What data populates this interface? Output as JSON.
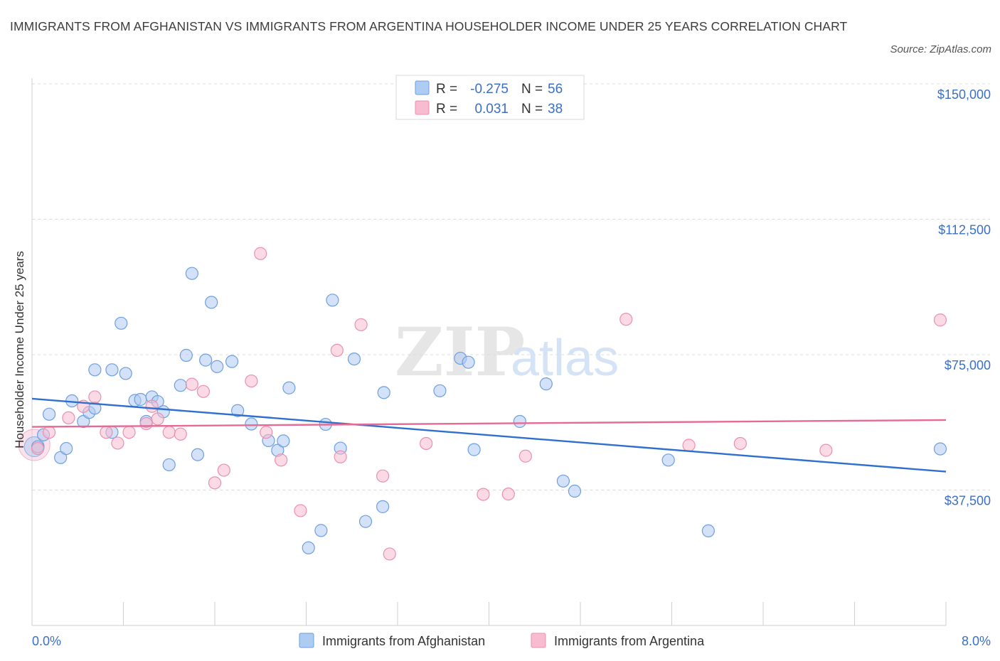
{
  "header": {
    "title": "IMMIGRANTS FROM AFGHANISTAN VS IMMIGRANTS FROM ARGENTINA HOUSEHOLDER INCOME UNDER 25 YEARS CORRELATION CHART",
    "source": "Source: ZipAtlas.com"
  },
  "watermark": {
    "zip": "ZIP",
    "atlas": "atlas"
  },
  "colors": {
    "blue_fill": "#aecbf2",
    "blue_stroke": "#6e9fe0",
    "blue_line": "#2f6fce",
    "pink_fill": "#f7bcd0",
    "pink_stroke": "#e990b0",
    "pink_line": "#e56a94",
    "axis_text": "#3b6fc6",
    "grid": "#dcdcdc"
  },
  "legend": {
    "rows": [
      {
        "r_label": "R =",
        "r_value": "-0.275",
        "n_label": "N =",
        "n_value": "56",
        "series": "blue"
      },
      {
        "r_label": "R =",
        "r_value": "0.031",
        "n_label": "N =",
        "n_value": "38",
        "series": "pink"
      }
    ]
  },
  "chart_data": {
    "type": "scatter",
    "title": "IMMIGRANTS FROM AFGHANISTAN VS IMMIGRANTS FROM ARGENTINA HOUSEHOLDER INCOME UNDER 25 YEARS CORRELATION CHART",
    "xlabel": "",
    "ylabel": "Householder Income Under 25 years",
    "xlim": [
      0,
      8
    ],
    "ylim": [
      0,
      150000
    ],
    "x_tick_labels": [
      "0.0%",
      "8.0%"
    ],
    "y_ticks": [
      37500,
      75000,
      112500,
      150000
    ],
    "y_tick_labels": [
      "$37,500",
      "$75,000",
      "$112,500",
      "$150,000"
    ],
    "grid": true,
    "legend_position": "top-center",
    "series": [
      {
        "name": "Immigrants from Afghanistan",
        "color": "#aecbf2",
        "trend": {
          "x": [
            0.0,
            8.0
          ],
          "y": [
            62800,
            42600
          ]
        },
        "points": [
          [
            0.05,
            49500
          ],
          [
            0.1,
            52800
          ],
          [
            0.15,
            58500
          ],
          [
            0.25,
            46500
          ],
          [
            0.3,
            49000
          ],
          [
            0.35,
            62200
          ],
          [
            0.45,
            56500
          ],
          [
            0.5,
            59000
          ],
          [
            0.55,
            60200
          ],
          [
            0.55,
            70800
          ],
          [
            0.7,
            53500
          ],
          [
            0.7,
            70800
          ],
          [
            0.78,
            83700
          ],
          [
            0.82,
            69800
          ],
          [
            0.9,
            62300
          ],
          [
            0.95,
            62600
          ],
          [
            1.0,
            56500
          ],
          [
            1.05,
            63300
          ],
          [
            1.1,
            62000
          ],
          [
            1.15,
            59200
          ],
          [
            1.2,
            44500
          ],
          [
            1.3,
            66500
          ],
          [
            1.35,
            74800
          ],
          [
            1.4,
            97500
          ],
          [
            1.45,
            47300
          ],
          [
            1.52,
            73500
          ],
          [
            1.57,
            89500
          ],
          [
            1.62,
            71700
          ],
          [
            1.75,
            73100
          ],
          [
            1.8,
            59500
          ],
          [
            1.92,
            55800
          ],
          [
            2.07,
            51200
          ],
          [
            2.15,
            48500
          ],
          [
            2.2,
            51100
          ],
          [
            2.25,
            65800
          ],
          [
            2.42,
            21500
          ],
          [
            2.53,
            26300
          ],
          [
            2.57,
            55700
          ],
          [
            2.63,
            90100
          ],
          [
            2.7,
            49100
          ],
          [
            2.82,
            73800
          ],
          [
            2.92,
            28800
          ],
          [
            3.07,
            32900
          ],
          [
            3.08,
            64500
          ],
          [
            3.57,
            65000
          ],
          [
            3.75,
            74000
          ],
          [
            3.82,
            72900
          ],
          [
            3.87,
            48700
          ],
          [
            4.27,
            56500
          ],
          [
            4.5,
            66900
          ],
          [
            4.65,
            40000
          ],
          [
            4.75,
            37200
          ],
          [
            5.57,
            45800
          ],
          [
            5.92,
            26200
          ],
          [
            7.95,
            48900
          ]
        ]
      },
      {
        "name": "Immigrants from Argentina",
        "color": "#f7bcd0",
        "trend": {
          "x": [
            0.0,
            8.0
          ],
          "y": [
            55000,
            56900
          ]
        },
        "points": [
          [
            0.05,
            49000
          ],
          [
            0.15,
            53500
          ],
          [
            0.32,
            57500
          ],
          [
            0.45,
            60700
          ],
          [
            0.55,
            63300
          ],
          [
            0.65,
            53500
          ],
          [
            0.75,
            50500
          ],
          [
            0.85,
            53500
          ],
          [
            1.0,
            55900
          ],
          [
            1.05,
            60700
          ],
          [
            1.1,
            57200
          ],
          [
            1.2,
            53500
          ],
          [
            1.3,
            53000
          ],
          [
            1.4,
            66800
          ],
          [
            1.5,
            64800
          ],
          [
            1.6,
            39500
          ],
          [
            1.68,
            43000
          ],
          [
            1.92,
            67700
          ],
          [
            2.0,
            103000
          ],
          [
            2.05,
            53500
          ],
          [
            2.18,
            45800
          ],
          [
            2.35,
            31800
          ],
          [
            2.67,
            76200
          ],
          [
            2.7,
            46700
          ],
          [
            2.88,
            83300
          ],
          [
            3.07,
            41400
          ],
          [
            3.13,
            19800
          ],
          [
            3.45,
            50400
          ],
          [
            3.95,
            36300
          ],
          [
            4.17,
            36400
          ],
          [
            4.32,
            46900
          ],
          [
            5.2,
            84800
          ],
          [
            5.75,
            49900
          ],
          [
            6.2,
            50400
          ],
          [
            6.95,
            48500
          ],
          [
            7.95,
            84600
          ]
        ]
      }
    ]
  },
  "bottom_legend": {
    "items": [
      {
        "label": "Immigrants from Afghanistan",
        "series": "blue"
      },
      {
        "label": "Immigrants from Argentina",
        "series": "pink"
      }
    ]
  }
}
